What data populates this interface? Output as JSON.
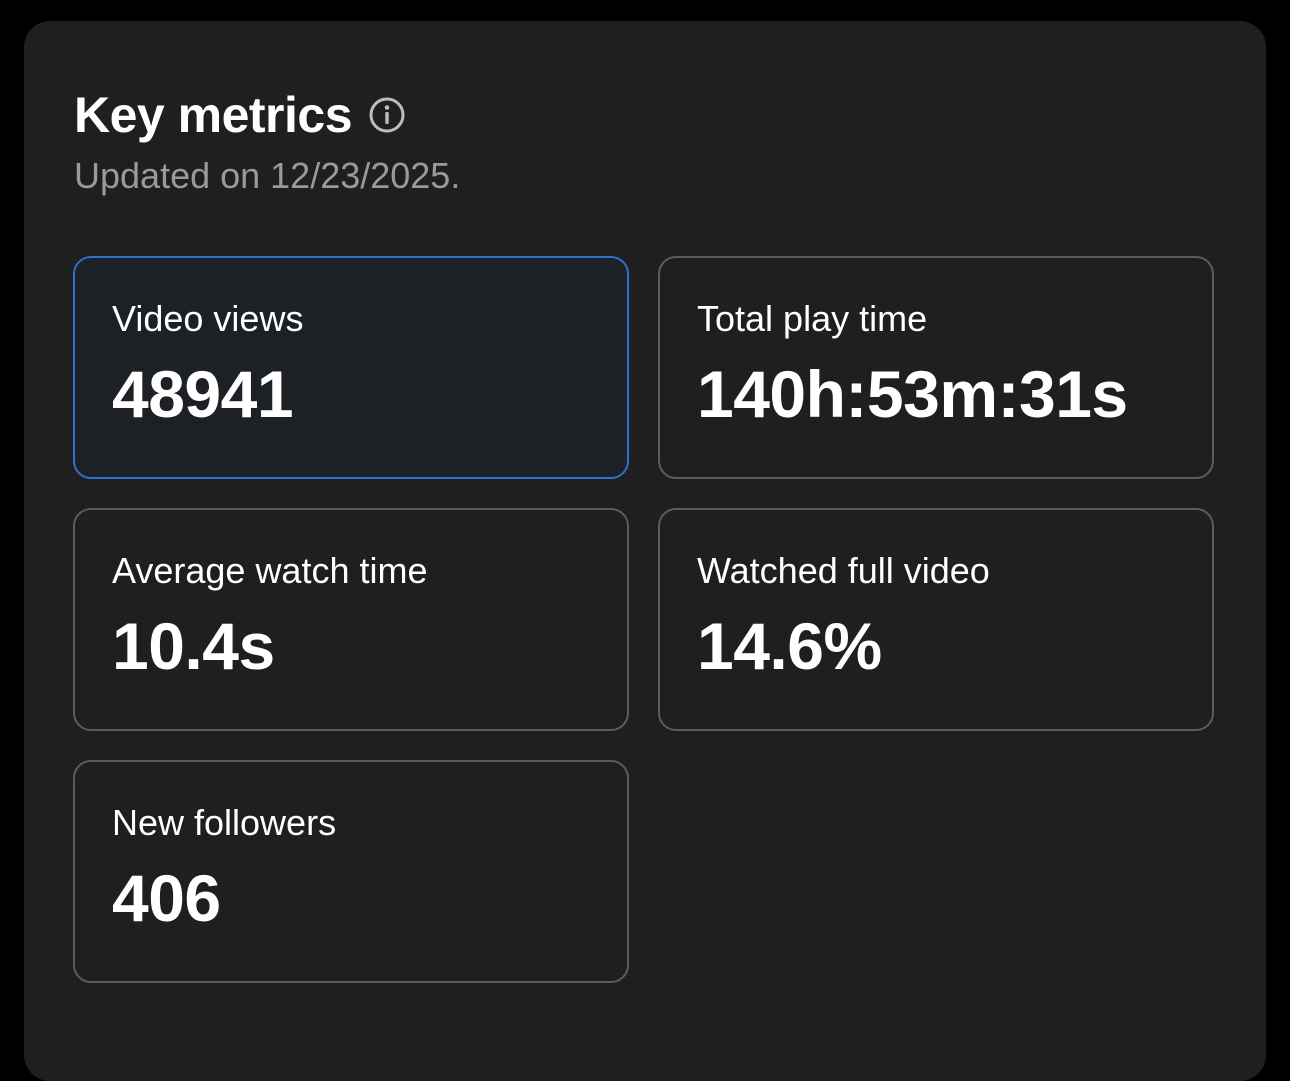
{
  "header": {
    "title": "Key metrics",
    "info_icon": "info-icon",
    "updated": "Updated on 12/23/2025."
  },
  "metrics": [
    {
      "label": "Video views",
      "value": "48941",
      "selected": true
    },
    {
      "label": "Total play time",
      "value": "140h:53m:31s",
      "selected": false
    },
    {
      "label": "Average watch time",
      "value": "10.4s",
      "selected": false
    },
    {
      "label": "Watched full video",
      "value": "14.6%",
      "selected": false
    },
    {
      "label": "New followers",
      "value": "406",
      "selected": false
    }
  ],
  "colors": {
    "background": "#000000",
    "panel": "#1f1f1f",
    "card_border": "#5c5c5c",
    "selected_border": "#2f6fd0",
    "text_primary": "#ffffff",
    "text_secondary": "#9a9a9a"
  }
}
